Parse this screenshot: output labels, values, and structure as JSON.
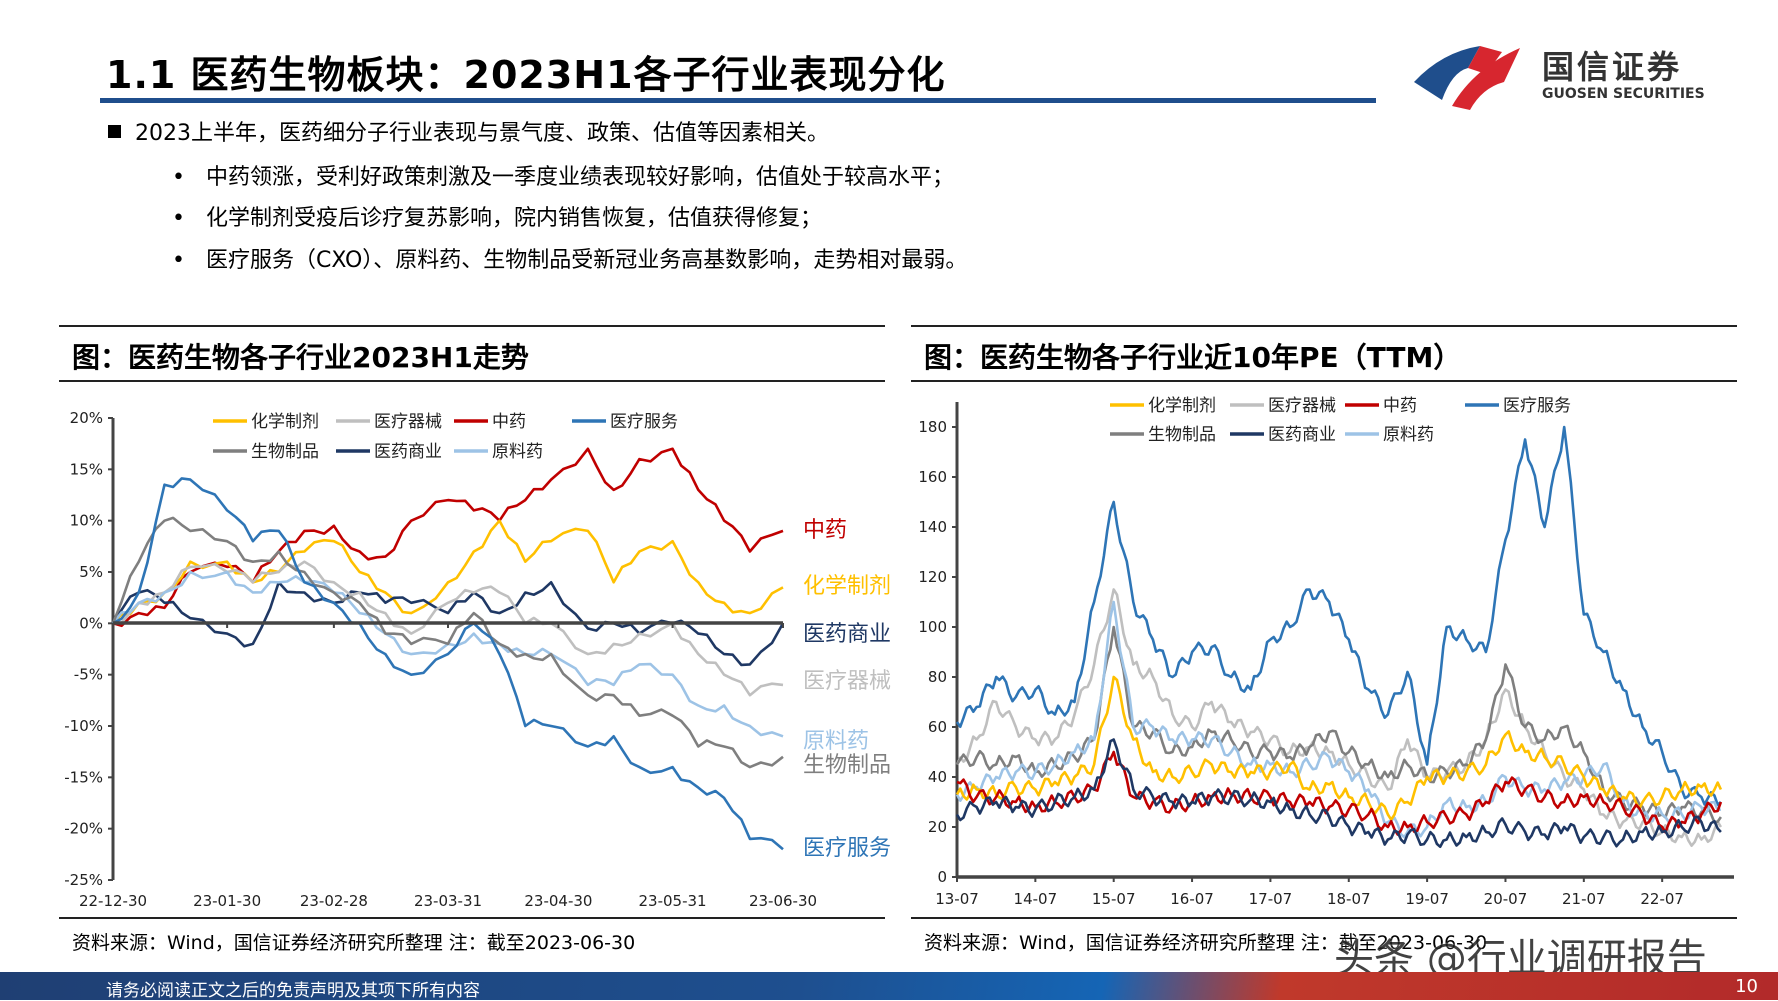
{
  "header": {
    "title": "1.1 医药生物板块：2023H1各子行业表现分化",
    "logo_text": "国信证券",
    "logo_subtext": "GUOSEN SECURITIES"
  },
  "bullets": {
    "main": "2023上半年，医药细分子行业表现与景气度、政策、估值等因素相关。",
    "subs": [
      "中药领涨，受利好政策刺激及一季度业绩表现较好影响，估值处于较高水平；",
      "化学制剂受疫后诊疗复苏影响，院内销售恢复，估值获得修复；",
      "医疗服务（CXO）、原料药、生物制品受新冠业务高基数影响，走势相对最弱。"
    ]
  },
  "left_panel": {
    "title": "图：医药生物各子行业2023H1走势",
    "source": "资料来源：Wind，国信证券经济研究所整理 注：截至2023-06-30"
  },
  "right_panel": {
    "title": "图：医药生物各子行业近10年PE（TTM）",
    "source": "资料来源：Wind，国信证券经济研究所整理 注：截至2023-06-30"
  },
  "footer": {
    "disclaimer": "请务必阅读正文之后的免责声明及其项下所有内容",
    "page": "10",
    "watermark": "头条 @行业调研报告"
  },
  "colors": {
    "title_rule": "#1F4E8C",
    "化学制剂": "#FFC000",
    "医疗器械": "#BFBFBF",
    "中药": "#C00000",
    "医疗服务": "#2E75B6",
    "生物制品": "#7F7F7F",
    "医药商业": "#1F3864",
    "原料药": "#9DC3E6"
  },
  "chart_data": [
    {
      "type": "line",
      "title": "",
      "ylabel": "",
      "ylim": [
        -25,
        20
      ],
      "yticks": [
        "20%",
        "15%",
        "10%",
        "5%",
        "0%",
        "-5%",
        "-10%",
        "-15%",
        "-20%",
        "-25%"
      ],
      "xticks": [
        "22-12-30",
        "23-01-30",
        "23-02-28",
        "23-03-31",
        "23-04-30",
        "23-05-31",
        "23-06-30"
      ],
      "legend": "top",
      "legend_order": [
        "化学制剂",
        "医疗器械",
        "中药",
        "医疗服务",
        "生物制品",
        "医药商业",
        "原料药"
      ],
      "x": [
        "2022-12-30",
        "2023-01-06",
        "2023-01-13",
        "2023-01-20",
        "2023-01-30",
        "2023-02-06",
        "2023-02-13",
        "2023-02-20",
        "2023-02-28",
        "2023-03-07",
        "2023-03-14",
        "2023-03-21",
        "2023-03-31",
        "2023-04-07",
        "2023-04-14",
        "2023-04-21",
        "2023-04-28",
        "2023-05-08",
        "2023-05-15",
        "2023-05-22",
        "2023-05-31",
        "2023-06-07",
        "2023-06-14",
        "2023-06-21",
        "2023-06-30"
      ],
      "series": [
        {
          "name": "中药",
          "end_label": "中药",
          "values": [
            0,
            1,
            1.5,
            5,
            5.5,
            4,
            7,
            9,
            9.5,
            7,
            6.5,
            10,
            12,
            11,
            10,
            12,
            14,
            17,
            13,
            16,
            17,
            13,
            10,
            7,
            9
          ]
        },
        {
          "name": "化学制剂",
          "end_label": "化学制剂",
          "values": [
            0,
            2,
            3,
            6,
            6,
            4,
            5,
            7,
            8,
            5,
            3,
            1,
            4,
            7,
            10,
            6,
            8,
            9,
            4,
            7,
            8,
            4,
            2,
            1,
            3.5
          ]
        },
        {
          "name": "医药商业",
          "end_label": "医药商业",
          "values": [
            0,
            3,
            2,
            0.5,
            -1,
            -2,
            4,
            3,
            2,
            3,
            2,
            2,
            1,
            3,
            1,
            3,
            4,
            -0.5,
            0,
            -1,
            0,
            -1,
            -3,
            -4,
            0
          ]
        },
        {
          "name": "医疗器械",
          "end_label": "医疗器械",
          "values": [
            0,
            2,
            3,
            5.5,
            5,
            4,
            5,
            6,
            4,
            3,
            1,
            -1,
            2,
            3,
            3,
            0,
            0,
            -3,
            -2,
            -1,
            0,
            -3,
            -5,
            -7,
            -6
          ]
        },
        {
          "name": "原料药",
          "end_label": "原料药",
          "values": [
            0,
            2,
            3,
            5,
            5,
            3,
            4,
            4,
            3,
            1,
            -1,
            -3,
            -2,
            -1,
            -2,
            -3,
            -3,
            -6,
            -6,
            -4,
            -5,
            -8,
            -8,
            -10,
            -11
          ]
        },
        {
          "name": "生物制品",
          "end_label": "生物制品",
          "values": [
            0,
            6,
            10,
            9,
            8,
            6,
            7,
            5,
            3,
            2,
            -1,
            -2,
            -2,
            1,
            -2,
            -3,
            -3,
            -7,
            -7,
            -9,
            -9,
            -12,
            -12,
            -14,
            -13
          ]
        },
        {
          "name": "医疗服务",
          "end_label": "医疗服务",
          "values": [
            0,
            3,
            13.5,
            14,
            11,
            8,
            9,
            4,
            2,
            0,
            -3,
            -5,
            -3,
            0,
            -3,
            -10,
            -10,
            -12,
            -11,
            -14,
            -14,
            -16,
            -17,
            -21,
            -22
          ]
        }
      ]
    },
    {
      "type": "line",
      "title": "",
      "ylabel": "",
      "ylim": [
        0,
        190
      ],
      "yticks": [
        "0",
        "20",
        "40",
        "60",
        "80",
        "100",
        "120",
        "140",
        "160",
        "180"
      ],
      "xticks": [
        "13-07",
        "14-07",
        "15-07",
        "16-07",
        "17-07",
        "18-07",
        "19-07",
        "20-07",
        "21-07",
        "22-07"
      ],
      "legend": "top",
      "legend_order": [
        "化学制剂",
        "医疗器械",
        "中药",
        "医疗服务",
        "生物制品",
        "医药商业",
        "原料药"
      ],
      "x": [
        "2013-07",
        "2013-10",
        "2014-01",
        "2014-04",
        "2014-07",
        "2014-10",
        "2015-01",
        "2015-04",
        "2015-07",
        "2015-10",
        "2016-01",
        "2016-04",
        "2016-07",
        "2016-10",
        "2017-01",
        "2017-04",
        "2017-07",
        "2017-10",
        "2018-01",
        "2018-04",
        "2018-07",
        "2018-10",
        "2019-01",
        "2019-04",
        "2019-07",
        "2019-10",
        "2020-01",
        "2020-04",
        "2020-07",
        "2020-10",
        "2021-01",
        "2021-04",
        "2021-07",
        "2021-10",
        "2022-01",
        "2022-04",
        "2022-07",
        "2022-10",
        "2023-01",
        "2023-04"
      ],
      "series": [
        {
          "name": "医疗服务",
          "values": [
            62,
            68,
            80,
            72,
            75,
            65,
            70,
            110,
            150,
            110,
            95,
            80,
            90,
            92,
            80,
            75,
            95,
            100,
            115,
            110,
            95,
            75,
            65,
            82,
            45,
            100,
            95,
            90,
            135,
            175,
            140,
            180,
            105,
            90,
            75,
            60,
            50,
            35,
            32,
            30
          ]
        },
        {
          "name": "医疗器械",
          "values": [
            45,
            55,
            70,
            60,
            55,
            55,
            65,
            85,
            115,
            85,
            80,
            65,
            60,
            70,
            62,
            58,
            55,
            50,
            52,
            50,
            45,
            40,
            35,
            55,
            40,
            42,
            45,
            55,
            75,
            60,
            50,
            40,
            35,
            25,
            22,
            22,
            18,
            16,
            15,
            20
          ]
        },
        {
          "name": "生物制品",
          "values": [
            45,
            48,
            45,
            48,
            42,
            45,
            48,
            55,
            100,
            60,
            58,
            50,
            52,
            58,
            55,
            50,
            50,
            48,
            52,
            58,
            50,
            45,
            40,
            45,
            40,
            42,
            45,
            55,
            85,
            60,
            55,
            60,
            50,
            35,
            30,
            28,
            25,
            28,
            26,
            24
          ]
        },
        {
          "name": "原料药",
          "values": [
            33,
            36,
            40,
            42,
            42,
            45,
            50,
            55,
            110,
            60,
            60,
            55,
            55,
            55,
            50,
            45,
            45,
            42,
            45,
            48,
            42,
            35,
            22,
            18,
            20,
            30,
            28,
            30,
            40,
            35,
            35,
            38,
            40,
            45,
            30,
            25,
            25,
            25,
            28,
            27
          ]
        },
        {
          "name": "化学制剂",
          "values": [
            33,
            35,
            33,
            36,
            35,
            38,
            40,
            45,
            80,
            55,
            42,
            40,
            42,
            45,
            42,
            42,
            42,
            45,
            35,
            37,
            32,
            30,
            25,
            30,
            40,
            40,
            42,
            45,
            57,
            50,
            48,
            45,
            40,
            35,
            32,
            30,
            32,
            35,
            36,
            35
          ]
        },
        {
          "name": "中药",
          "values": [
            38,
            32,
            32,
            30,
            28,
            30,
            32,
            35,
            50,
            32,
            30,
            28,
            30,
            32,
            33,
            32,
            32,
            30,
            30,
            28,
            27,
            25,
            20,
            20,
            22,
            24,
            25,
            30,
            38,
            35,
            32,
            30,
            32,
            30,
            28,
            25,
            20,
            22,
            25,
            30
          ]
        },
        {
          "name": "医药商业",
          "values": [
            25,
            28,
            30,
            28,
            27,
            30,
            32,
            35,
            55,
            35,
            32,
            30,
            30,
            32,
            32,
            31,
            30,
            27,
            25,
            24,
            20,
            18,
            15,
            17,
            15,
            15,
            16,
            18,
            21,
            18,
            17,
            20,
            16,
            16,
            15,
            18,
            18,
            20,
            22,
            18
          ]
        }
      ]
    }
  ]
}
